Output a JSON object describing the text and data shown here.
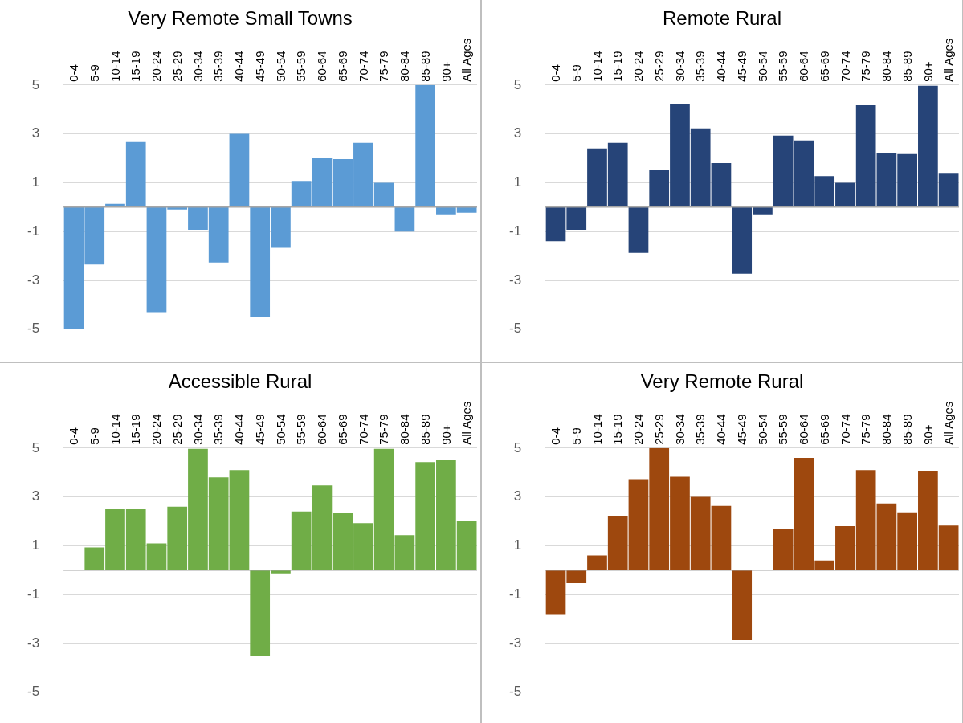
{
  "chart_data": [
    {
      "type": "bar",
      "title": "Very Remote Small Towns",
      "categories": [
        "0-4",
        "5-9",
        "10-14",
        "15-19",
        "20-24",
        "25-29",
        "30-34",
        "35-39",
        "40-44",
        "45-49",
        "50-54",
        "55-59",
        "60-64",
        "65-69",
        "70-74",
        "75-79",
        "80-84",
        "85-89",
        "90+",
        "All Ages"
      ],
      "values": [
        -5,
        -2.35,
        0.13,
        2.67,
        -4.33,
        -0.1,
        -0.93,
        -2.27,
        3,
        -4.5,
        -1.67,
        1.07,
        2,
        1.97,
        2.63,
        1,
        -1,
        5,
        -0.33,
        -0.23
      ],
      "color": "#5b9bd5",
      "ylim": [
        -5,
        5
      ],
      "yticks": [
        -5,
        -3,
        -1,
        1,
        3,
        5
      ],
      "grid": "y"
    },
    {
      "type": "bar",
      "title": "Remote Rural",
      "categories": [
        "0-4",
        "5-9",
        "10-14",
        "15-19",
        "20-24",
        "25-29",
        "30-34",
        "35-39",
        "40-44",
        "45-49",
        "50-54",
        "55-59",
        "60-64",
        "65-69",
        "70-74",
        "75-79",
        "80-84",
        "85-89",
        "90+",
        "All Ages"
      ],
      "values": [
        -1.4,
        -0.93,
        2.4,
        2.63,
        -1.87,
        1.53,
        4.23,
        3.23,
        1.8,
        -2.73,
        -0.33,
        2.93,
        2.73,
        1.27,
        1,
        4.17,
        2.23,
        2.17,
        4.97,
        1.4
      ],
      "color": "#264478",
      "ylim": [
        -5,
        5
      ],
      "yticks": [
        -5,
        -3,
        -1,
        1,
        3,
        5
      ],
      "grid": "y"
    },
    {
      "type": "bar",
      "title": "Accessible Rural",
      "categories": [
        "0-4",
        "5-9",
        "10-14",
        "15-19",
        "20-24",
        "25-29",
        "30-34",
        "35-39",
        "40-44",
        "45-49",
        "50-54",
        "55-59",
        "60-64",
        "65-69",
        "70-74",
        "75-79",
        "80-84",
        "85-89",
        "90+",
        "All Ages"
      ],
      "values": [
        0,
        0.93,
        2.53,
        2.53,
        1.1,
        2.6,
        4.97,
        3.8,
        4.1,
        -3.5,
        -0.13,
        2.4,
        3.47,
        2.33,
        1.93,
        4.97,
        1.43,
        4.43,
        4.53,
        2.03
      ],
      "color": "#70ad47",
      "ylim": [
        -5,
        5
      ],
      "yticks": [
        -5,
        -3,
        -1,
        1,
        3,
        5
      ],
      "grid": "y"
    },
    {
      "type": "bar",
      "title": "Very Remote Rural",
      "categories": [
        "0-4",
        "5-9",
        "10-14",
        "15-19",
        "20-24",
        "25-29",
        "30-34",
        "35-39",
        "40-44",
        "45-49",
        "50-54",
        "55-59",
        "60-64",
        "65-69",
        "70-74",
        "75-79",
        "80-84",
        "85-89",
        "90+",
        "All Ages"
      ],
      "values": [
        -1.8,
        -0.53,
        0.6,
        2.23,
        3.73,
        5,
        3.83,
        3,
        2.63,
        -2.87,
        0,
        1.67,
        4.6,
        0.4,
        1.8,
        4.1,
        2.73,
        2.37,
        4.07,
        1.83
      ],
      "color": "#9e480e",
      "ylim": [
        -5,
        5
      ],
      "yticks": [
        -5,
        -3,
        -1,
        1,
        3,
        5
      ],
      "grid": "y"
    }
  ]
}
